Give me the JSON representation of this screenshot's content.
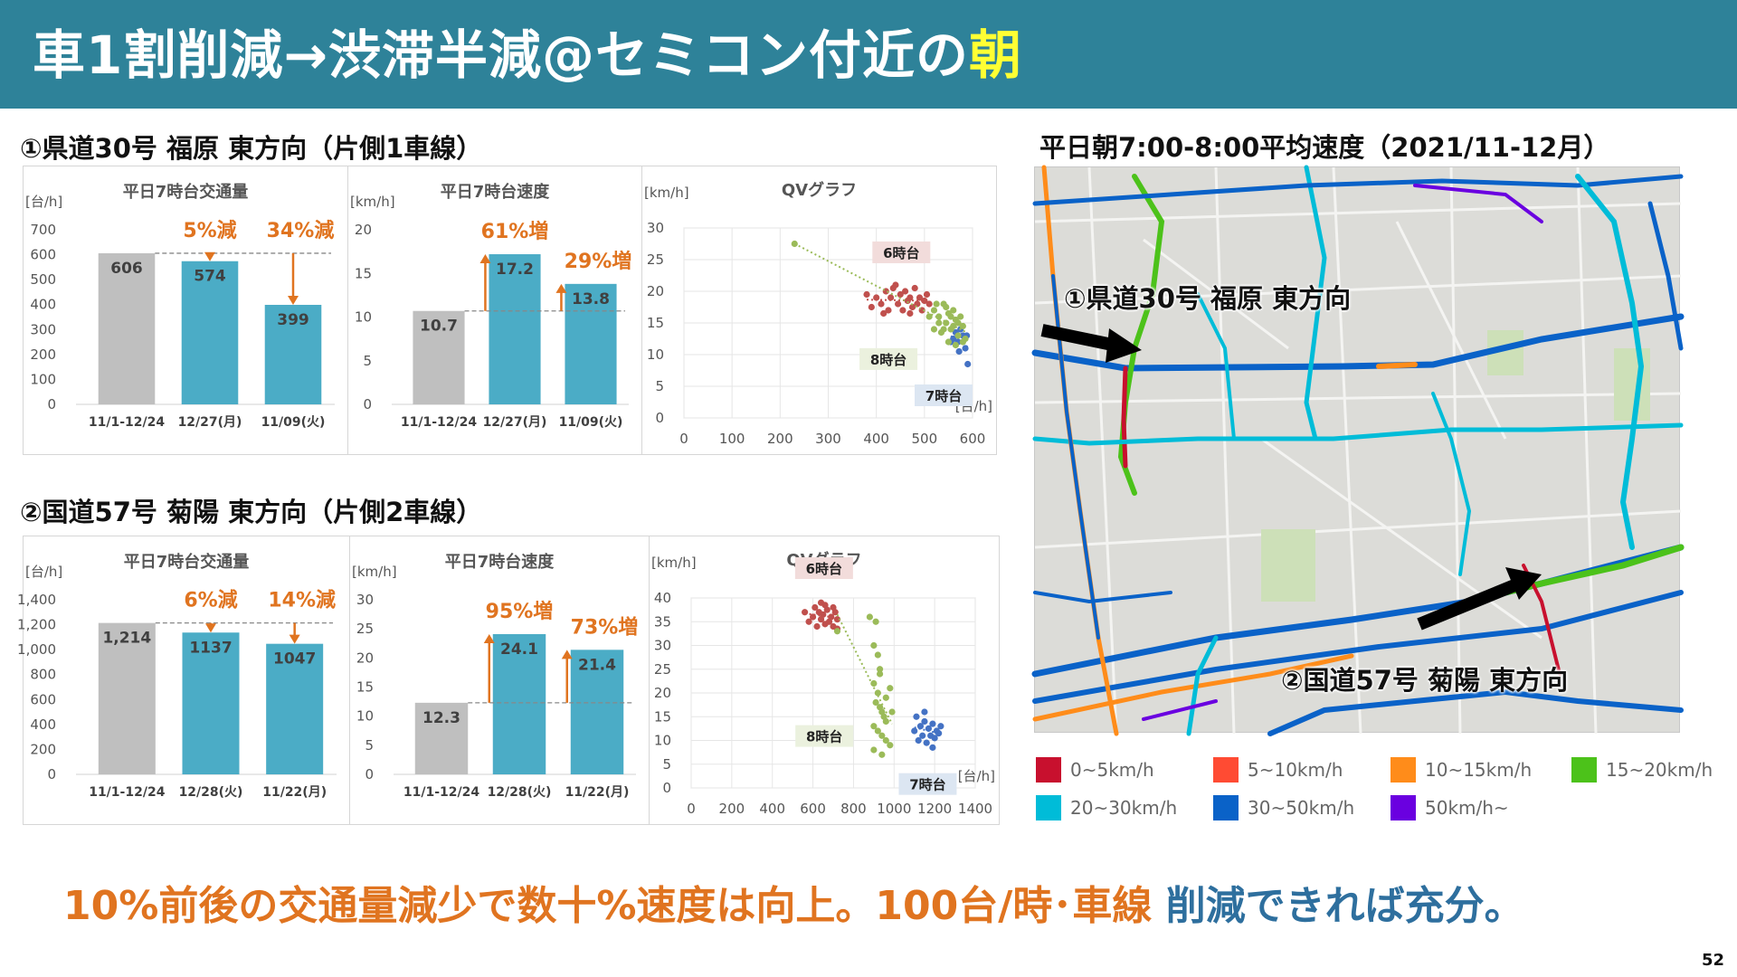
{
  "header": {
    "title_main": "車1割削減→渋滞半減@セミコン付近の",
    "title_accent": "朝"
  },
  "sections": [
    {
      "title": "①県道30号 福原 東方向（片側1車線）"
    },
    {
      "title": "②国道57号 菊陽 東方向（片側2車線）"
    }
  ],
  "map": {
    "title": "平日朝7:00-8:00平均速度（2021/11-12月）",
    "label_1": "①県道30号 福原 東方向",
    "label_2": "②国道57号 菊陽 東方向"
  },
  "legend": [
    {
      "label": "0~5km/h",
      "color": "#c8102e"
    },
    {
      "label": "5~10km/h",
      "color": "#ff4b33"
    },
    {
      "label": "10~15km/h",
      "color": "#ff8c1a"
    },
    {
      "label": "15~20km/h",
      "color": "#4cc21a"
    },
    {
      "label": "20~30km/h",
      "color": "#00bcd8"
    },
    {
      "label": "30~50km/h",
      "color": "#0a62c8"
    },
    {
      "label": "50km/h~",
      "color": "#6a00e0"
    }
  ],
  "conclusion": {
    "part1": "10%前後の交通量減少で",
    "part2": "数十%速度は向上。",
    "part3": "100台/時･車線",
    "part4": " 削減できれば充分。"
  },
  "page_number": "52",
  "colors": {
    "accent": "#e07420",
    "bar_base": "#bfbfbf",
    "bar_main": "#4bacc6",
    "header": "#2e8299"
  },
  "chart_data": [
    {
      "type": "bar",
      "title": "平日7時台交通量",
      "ylabel": "[台/h]",
      "ylim": [
        0,
        700
      ],
      "yticks": [
        "0",
        "100",
        "200",
        "300",
        "400",
        "500",
        "600",
        "700"
      ],
      "categories": [
        "11/1-12/24",
        "12/27(月)",
        "11/09(火)"
      ],
      "values": [
        606,
        574,
        399
      ],
      "value_labels": [
        "606",
        "574",
        "399"
      ],
      "annotations": [
        "5%減",
        "34%減"
      ]
    },
    {
      "type": "bar",
      "title": "平日7時台速度",
      "ylabel": "[km/h]",
      "ylim": [
        0,
        20
      ],
      "yticks": [
        "0",
        "5",
        "10",
        "15",
        "20"
      ],
      "categories": [
        "11/1-12/24",
        "12/27(月)",
        "11/09(火)"
      ],
      "values": [
        10.7,
        17.2,
        13.8
      ],
      "value_labels": [
        "10.7",
        "17.2",
        "13.8"
      ],
      "annotations": [
        "61%増",
        "29%増"
      ]
    },
    {
      "type": "scatter",
      "title": "QVグラフ",
      "ylabel": "[km/h]",
      "xlabel": "[台/h]",
      "xlim": [
        0,
        600
      ],
      "ylim": [
        0,
        30
      ],
      "xticks": [
        "0",
        "100",
        "200",
        "300",
        "400",
        "500",
        "600"
      ],
      "yticks": [
        "0",
        "5",
        "10",
        "15",
        "20",
        "25",
        "30"
      ],
      "series": [
        {
          "name": "6時台",
          "color": "#c0504d",
          "points": [
            [
              400,
              19
            ],
            [
              410,
              18
            ],
            [
              420,
              20
            ],
            [
              425,
              17
            ],
            [
              430,
              19
            ],
            [
              440,
              21
            ],
            [
              445,
              18
            ],
            [
              450,
              19.5
            ],
            [
              455,
              17
            ],
            [
              460,
              20
            ],
            [
              465,
              18.5
            ],
            [
              470,
              19
            ],
            [
              475,
              17.5
            ],
            [
              480,
              20.5
            ],
            [
              485,
              18
            ],
            [
              490,
              19
            ],
            [
              495,
              17
            ],
            [
              500,
              18.5
            ],
            [
              505,
              19.5
            ],
            [
              510,
              18
            ],
            [
              380,
              19.5
            ],
            [
              390,
              17.5
            ],
            [
              415,
              16.5
            ],
            [
              435,
              20.5
            ],
            [
              470,
              16.5
            ]
          ]
        },
        {
          "name": "7時台",
          "color": "#4472c4",
          "points": [
            [
              570,
              12
            ],
            [
              575,
              14
            ],
            [
              580,
              13
            ],
            [
              585,
              11
            ],
            [
              590,
              8.5
            ],
            [
              560,
              12.5
            ],
            [
              565,
              13.5
            ],
            [
              555,
              12
            ],
            [
              572,
              10.5
            ],
            [
              588,
              13
            ]
          ]
        },
        {
          "name": "8時台",
          "color": "#9bbb59",
          "points": [
            [
              230,
              27.5
            ],
            [
              520,
              17
            ],
            [
              530,
              16
            ],
            [
              540,
              18
            ],
            [
              545,
              15
            ],
            [
              550,
              16.5
            ],
            [
              555,
              14
            ],
            [
              560,
              17
            ],
            [
              565,
              15.5
            ],
            [
              570,
              13
            ],
            [
              575,
              16
            ],
            [
              580,
              14.5
            ],
            [
              585,
              12.5
            ],
            [
              520,
              14
            ],
            [
              530,
              15
            ],
            [
              535,
              13.5
            ],
            [
              545,
              17.5
            ],
            [
              550,
              12
            ],
            [
              560,
              14.5
            ],
            [
              565,
              11.5
            ],
            [
              510,
              16
            ],
            [
              525,
              18
            ],
            [
              540,
              14
            ],
            [
              555,
              16
            ],
            [
              570,
              15
            ],
            [
              580,
              12
            ]
          ]
        }
      ]
    },
    {
      "type": "bar",
      "title": "平日7時台交通量",
      "ylabel": "[台/h]",
      "ylim": [
        0,
        1400
      ],
      "yticks": [
        "0",
        "200",
        "400",
        "600",
        "800",
        "1,000",
        "1,200",
        "1,400"
      ],
      "categories": [
        "11/1-12/24",
        "12/28(火)",
        "11/22(月)"
      ],
      "values": [
        1214,
        1137,
        1047
      ],
      "value_labels": [
        "1,214",
        "1137",
        "1047"
      ],
      "annotations": [
        "6%減",
        "14%減"
      ]
    },
    {
      "type": "bar",
      "title": "平日7時台速度",
      "ylabel": "[km/h]",
      "ylim": [
        0,
        30
      ],
      "yticks": [
        "0",
        "5",
        "10",
        "15",
        "20",
        "25",
        "30"
      ],
      "categories": [
        "11/1-12/24",
        "12/28(火)",
        "11/22(月)"
      ],
      "values": [
        12.3,
        24.1,
        21.4
      ],
      "value_labels": [
        "12.3",
        "24.1",
        "21.4"
      ],
      "annotations": [
        "95%増",
        "73%増"
      ]
    },
    {
      "type": "scatter",
      "title": "QVグラフ",
      "ylabel": "[km/h]",
      "xlabel": "[台/h]",
      "xlim": [
        0,
        1400
      ],
      "ylim": [
        0,
        40
      ],
      "xticks": [
        "0",
        "200",
        "400",
        "600",
        "800",
        "1000",
        "1200",
        "1400"
      ],
      "yticks": [
        "0",
        "5",
        "10",
        "15",
        "20",
        "25",
        "30",
        "35",
        "40"
      ],
      "series": [
        {
          "name": "6時台",
          "color": "#c0504d",
          "points": [
            [
              560,
              37
            ],
            [
              580,
              35
            ],
            [
              600,
              36
            ],
            [
              610,
              38
            ],
            [
              620,
              34
            ],
            [
              630,
              37
            ],
            [
              640,
              35.5
            ],
            [
              650,
              36.5
            ],
            [
              660,
              34.5
            ],
            [
              670,
              37.5
            ],
            [
              680,
              35
            ],
            [
              690,
              36
            ],
            [
              700,
              34
            ],
            [
              710,
              37
            ],
            [
              720,
              35.5
            ],
            [
              640,
              39
            ],
            [
              660,
              38.5
            ],
            [
              700,
              38
            ],
            [
              720,
              33.5
            ]
          ]
        },
        {
          "name": "7時台",
          "color": "#4472c4",
          "points": [
            [
              1100,
              12
            ],
            [
              1120,
              10
            ],
            [
              1130,
              13
            ],
            [
              1140,
              11
            ],
            [
              1150,
              14
            ],
            [
              1160,
              9.5
            ],
            [
              1170,
              12.5
            ],
            [
              1180,
              11
            ],
            [
              1190,
              13.5
            ],
            [
              1200,
              10.5
            ],
            [
              1210,
              12
            ],
            [
              1220,
              11.5
            ],
            [
              1110,
              15
            ],
            [
              1150,
              16
            ],
            [
              1190,
              8.5
            ],
            [
              1230,
              13
            ]
          ]
        },
        {
          "name": "8時台",
          "color": "#9bbb59",
          "points": [
            [
              720,
              33
            ],
            [
              880,
              36
            ],
            [
              910,
              35
            ],
            [
              900,
              30
            ],
            [
              920,
              28
            ],
            [
              930,
              25
            ],
            [
              900,
              22
            ],
            [
              920,
              20
            ],
            [
              910,
              18
            ],
            [
              930,
              17
            ],
            [
              940,
              16
            ],
            [
              950,
              15
            ],
            [
              960,
              14
            ],
            [
              900,
              13
            ],
            [
              920,
              12
            ],
            [
              940,
              11
            ],
            [
              960,
              10
            ],
            [
              980,
              9
            ],
            [
              900,
              8
            ],
            [
              940,
              7
            ],
            [
              960,
              19
            ],
            [
              980,
              21
            ],
            [
              990,
              16
            ],
            [
              930,
              24
            ]
          ]
        }
      ]
    }
  ]
}
